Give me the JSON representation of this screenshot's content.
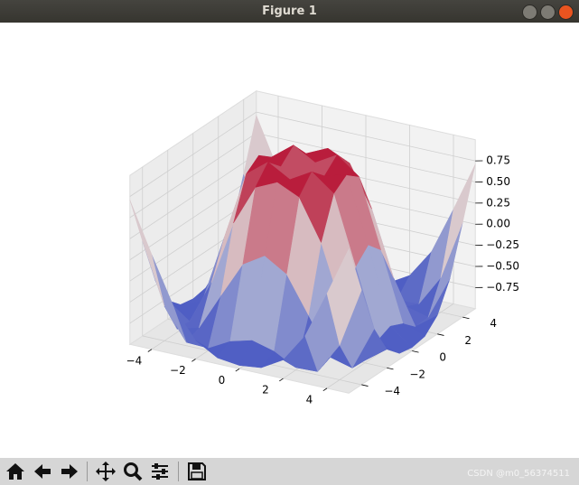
{
  "window": {
    "title": "Figure 1"
  },
  "watermark": "CSDN @m0_56374511",
  "chart_data": {
    "type": "surface3d",
    "x": [
      -5,
      -4,
      -3,
      -2,
      -1,
      0,
      1,
      2,
      3,
      4,
      5
    ],
    "y": [
      -5,
      -4,
      -3,
      -2,
      -1,
      0,
      1,
      2,
      3,
      4,
      5
    ],
    "z": [
      [
        0.71,
        0.12,
        -0.44,
        -0.78,
        -0.93,
        -0.96,
        -0.93,
        -0.78,
        -0.44,
        0.12,
        0.71
      ],
      [
        0.12,
        -0.59,
        -0.96,
        -0.97,
        -0.83,
        -0.76,
        -0.83,
        -0.97,
        -0.96,
        -0.59,
        0.12
      ],
      [
        -0.44,
        -0.96,
        -0.89,
        -0.45,
        -0.02,
        0.14,
        -0.02,
        -0.45,
        -0.89,
        -0.96,
        -0.44
      ],
      [
        -0.78,
        -0.97,
        -0.45,
        0.31,
        0.79,
        0.91,
        0.79,
        0.31,
        -0.45,
        -0.97,
        -0.78
      ],
      [
        -0.93,
        -0.83,
        -0.02,
        0.79,
        0.99,
        0.84,
        0.99,
        0.79,
        -0.02,
        -0.83,
        -0.93
      ],
      [
        -0.96,
        -0.76,
        0.14,
        0.91,
        0.84,
        0,
        0.84,
        0.91,
        0.14,
        -0.76,
        -0.96
      ],
      [
        -0.93,
        -0.83,
        -0.02,
        0.79,
        0.99,
        0.84,
        0.99,
        0.79,
        -0.02,
        -0.83,
        -0.93
      ],
      [
        -0.78,
        -0.97,
        -0.45,
        0.31,
        0.79,
        0.91,
        0.79,
        0.31,
        -0.45,
        -0.97,
        -0.78
      ],
      [
        -0.44,
        -0.96,
        -0.89,
        -0.45,
        -0.02,
        0.14,
        -0.02,
        -0.45,
        -0.89,
        -0.96,
        -0.44
      ],
      [
        0.12,
        -0.59,
        -0.96,
        -0.97,
        -0.83,
        -0.76,
        -0.83,
        -0.97,
        -0.96,
        -0.59,
        0.12
      ],
      [
        0.71,
        0.12,
        -0.44,
        -0.78,
        -0.93,
        -0.96,
        -0.93,
        -0.78,
        -0.44,
        0.12,
        0.71
      ]
    ],
    "xlim": [
      -5,
      5
    ],
    "ylim": [
      -5,
      5
    ],
    "zlim": [
      -1,
      1
    ],
    "xticks": [
      {
        "value": -4,
        "label": "−4"
      },
      {
        "value": -2,
        "label": "−2"
      },
      0,
      2,
      4
    ],
    "yticks": [
      {
        "value": -4,
        "label": "−4"
      },
      {
        "value": -2,
        "label": "−2"
      },
      0,
      2,
      4
    ],
    "zticks": [
      {
        "value": -0.75,
        "label": "−0.75"
      },
      {
        "value": -0.5,
        "label": "−0.50"
      },
      {
        "value": -0.25,
        "label": "−0.25"
      },
      {
        "value": 0,
        "label": "0.00"
      },
      0.25,
      {
        "value": 0.5,
        "label": "0.50"
      },
      0.75
    ],
    "colormap": [
      "#3b4cc0",
      "#dddddd",
      "#b40426"
    ],
    "grid": true
  }
}
